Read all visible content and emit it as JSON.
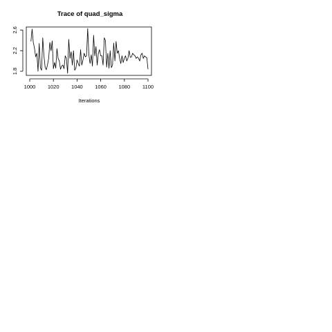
{
  "chart_data": {
    "type": "line",
    "title": "Trace of quad_sigma",
    "xlabel": "Iterations",
    "ylabel": "",
    "xlim": [
      1000,
      1100
    ],
    "ylim": [
      1.72,
      2.66
    ],
    "xticks": [
      1000,
      1020,
      1040,
      1060,
      1080,
      1100
    ],
    "yticks": [
      1.8,
      2.2,
      2.6
    ],
    "grid": false,
    "series": [
      {
        "x": [
          1001,
          1002,
          1003,
          1004,
          1005,
          1006,
          1007,
          1008,
          1009,
          1010,
          1011,
          1012,
          1013,
          1014,
          1015,
          1016,
          1017,
          1018,
          1019,
          1020,
          1021,
          1022,
          1023,
          1024,
          1025,
          1026,
          1027,
          1028,
          1029,
          1030,
          1031,
          1032,
          1033,
          1034,
          1035,
          1036,
          1037,
          1038,
          1039,
          1040,
          1041,
          1042,
          1043,
          1044,
          1045,
          1046,
          1047,
          1048,
          1049,
          1050,
          1051,
          1052,
          1053,
          1054,
          1055,
          1056,
          1057,
          1058,
          1059,
          1060,
          1061,
          1062,
          1063,
          1064,
          1065,
          1066,
          1067,
          1068,
          1069,
          1070,
          1071,
          1072,
          1073,
          1074,
          1075,
          1076,
          1077,
          1078,
          1079,
          1080,
          1081,
          1082,
          1083,
          1084,
          1085,
          1086,
          1087,
          1088,
          1089,
          1090,
          1091,
          1092,
          1093,
          1094,
          1095,
          1096,
          1097,
          1098,
          1099,
          1100
        ],
        "values": [
          2.38,
          2.62,
          2.36,
          2.25,
          2.08,
          2.15,
          1.8,
          2.34,
          1.87,
          1.82,
          2.45,
          2.1,
          1.88,
          1.83,
          1.92,
          2.05,
          2.36,
          2.2,
          2.39,
          1.85,
          1.97,
          1.86,
          2.24,
          2.05,
          2.0,
          1.84,
          1.9,
          1.92,
          1.85,
          2.1,
          2.05,
          1.76,
          2.42,
          2.05,
          2.18,
          1.92,
          2.2,
          1.82,
          1.86,
          2.02,
          1.95,
          1.9,
          2.22,
          1.92,
          2.02,
          2.15,
          2.08,
          2.1,
          2.63,
          2.12,
          1.95,
          2.12,
          1.9,
          2.5,
          2.1,
          2.28,
          1.92,
          2.15,
          2.22,
          2.1,
          2.1,
          1.92,
          2.45,
          2.4,
          1.88,
          2.15,
          1.86,
          2.2,
          1.87,
          1.92,
          2.35,
          2.0,
          2.38,
          2.15,
          2.2,
          2.05,
          1.95,
          2.1,
          1.97,
          2.05,
          2.1,
          2.0,
          2.05,
          2.2,
          2.07,
          2.08,
          2.15,
          2.12,
          2.1,
          2.05,
          2.08,
          2.05,
          2.0,
          2.12,
          2.15,
          2.05,
          2.1,
          2.08,
          2.06,
          1.84
        ]
      }
    ]
  }
}
